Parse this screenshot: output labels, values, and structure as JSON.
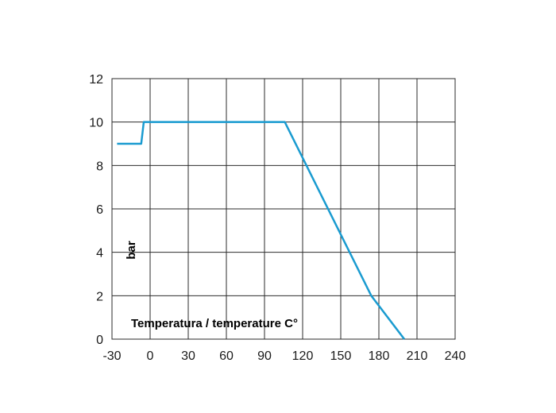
{
  "chart_data": {
    "type": "line",
    "title": "",
    "xlabel": "Temperatura / temperature C°",
    "ylabel": "bar",
    "xlim": [
      -30,
      240
    ],
    "ylim": [
      0,
      12
    ],
    "x_ticks": [
      -30,
      0,
      30,
      60,
      90,
      120,
      150,
      180,
      210,
      240
    ],
    "y_ticks": [
      0,
      2,
      4,
      6,
      8,
      10,
      12
    ],
    "grid": true,
    "legend": "none",
    "series": [
      {
        "color": "#1a9bd0",
        "x": [
          -26,
          -7,
          -5,
          106,
          174,
          200
        ],
        "y": [
          9,
          9,
          10,
          10,
          2,
          0
        ]
      }
    ]
  }
}
